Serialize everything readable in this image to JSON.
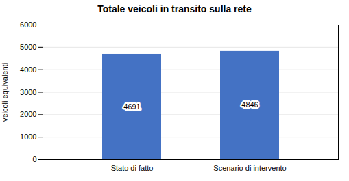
{
  "chart_data": {
    "type": "bar",
    "title": "Totale veicoli in transito sulla rete",
    "categories": [
      "Stato di fatto",
      "Scenario di intervento"
    ],
    "values": [
      4691,
      4846
    ],
    "color": "#4472C4",
    "ylabel": "veicoli equivalenti",
    "ylim": [
      0,
      6000
    ],
    "yticks": [
      0,
      1000,
      2000,
      3000,
      4000,
      5000,
      6000
    ],
    "grid": true,
    "data_labels": true
  }
}
